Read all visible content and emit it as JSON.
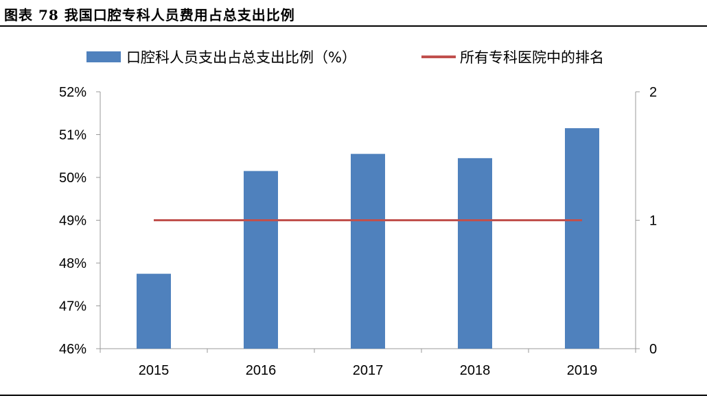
{
  "title": "图表 78 我国口腔专科人员费用占总支出比例",
  "chart_data": {
    "type": "bar",
    "categories": [
      "2015",
      "2016",
      "2017",
      "2018",
      "2019"
    ],
    "series": [
      {
        "name": "口腔科人员支出占总支出比例（%）",
        "type": "bar",
        "axis": "left",
        "color": "#4f81bd",
        "values": [
          47.75,
          50.15,
          50.55,
          50.45,
          51.15
        ]
      },
      {
        "name": "所有专科医院中的排名",
        "type": "line",
        "axis": "right",
        "color": "#c0504d",
        "values": [
          1,
          1,
          1,
          1,
          1
        ]
      }
    ],
    "ylim_left": [
      46,
      52
    ],
    "ylim_right": [
      0,
      2
    ],
    "yticks_left": [
      "46%",
      "47%",
      "48%",
      "49%",
      "50%",
      "51%",
      "52%"
    ],
    "yticks_right": [
      "0",
      "1",
      "2"
    ],
    "legend_position": "top",
    "grid": false
  }
}
